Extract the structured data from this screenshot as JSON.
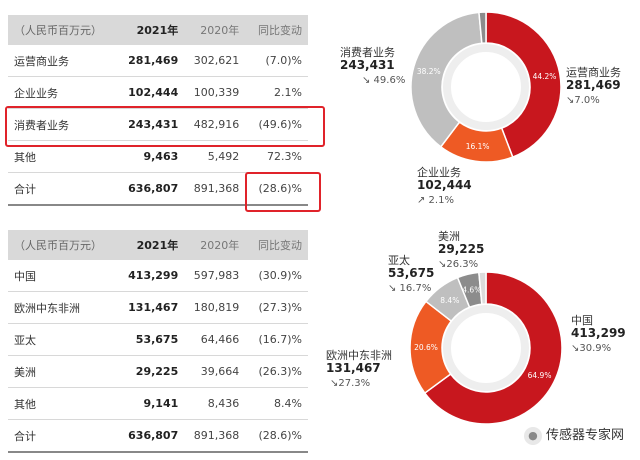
{
  "table1": {
    "header": [
      "（人民币百万元）",
      "2021年",
      "2020年",
      "同比变动"
    ],
    "rows": [
      [
        "运营商业务",
        "281,469",
        "302,621",
        "(7.0)%"
      ],
      [
        "企业业务",
        "102,444",
        "100,339",
        "2.1%"
      ],
      [
        "消费者业务",
        "243,431",
        "482,916",
        "(49.6)%"
      ],
      [
        "其他",
        "9,463",
        "5,492",
        "72.3%"
      ],
      [
        "合计",
        "636,807",
        "891,368",
        "(28.6)%"
      ]
    ]
  },
  "table2": {
    "header": [
      "（人民币百万元）",
      "2021年",
      "2020年",
      "同比变动"
    ],
    "rows": [
      [
        "中国",
        "413,299",
        "597,983",
        "(30.9)%"
      ],
      [
        "欧洲中东非洲",
        "131,467",
        "180,819",
        "(27.3)%"
      ],
      [
        "亚太",
        "53,675",
        "64,466",
        "(16.7)%"
      ],
      [
        "美洲",
        "29,225",
        "39,664",
        "(26.3)%"
      ],
      [
        "其他",
        "9,141",
        "8,436",
        "8.4%"
      ],
      [
        "合计",
        "636,807",
        "891,368",
        "(28.6)%"
      ]
    ]
  },
  "chart_data": [
    {
      "type": "pie",
      "donut": true,
      "labels": [
        "运营商业务",
        "企业业务",
        "消费者业务",
        "其他"
      ],
      "values": [
        44.2,
        16.1,
        38.2,
        1.5
      ],
      "slice_labels": [
        "44.2%",
        "16.1%",
        "38.2%",
        ""
      ],
      "colors": [
        "#c8171e",
        "#ee5a24",
        "#bfbfbf",
        "#8c8c8c"
      ],
      "callouts": [
        {
          "name": "运营商业务",
          "value": "281,469",
          "change": "↘7.0%"
        },
        {
          "name": "企业业务",
          "value": "102,444",
          "change": "↗ 2.1%"
        },
        {
          "name": "消费者业务",
          "value": "243,431",
          "change": "↘ 49.6%"
        }
      ]
    },
    {
      "type": "pie",
      "donut": true,
      "labels": [
        "中国",
        "欧洲中东非洲",
        "亚太",
        "美洲",
        "其他"
      ],
      "values": [
        64.9,
        20.6,
        8.4,
        4.6,
        1.5
      ],
      "slice_labels": [
        "64.9%",
        "20.6%",
        "8.4%",
        "4.6%",
        ""
      ],
      "colors": [
        "#c8171e",
        "#ee5a24",
        "#bfbfbf",
        "#8c8c8c",
        "#dcdcdc"
      ],
      "callouts": [
        {
          "name": "中国",
          "value": "413,299",
          "change": "↘30.9%"
        },
        {
          "name": "欧洲中东非洲",
          "value": "131,467",
          "change": "↘27.3%"
        },
        {
          "name": "亚太",
          "value": "53,675",
          "change": "↘ 16.7%"
        },
        {
          "name": "美洲",
          "value": "29,225",
          "change": "↘26.3%"
        }
      ]
    }
  ],
  "watermark": "传感器专家网"
}
